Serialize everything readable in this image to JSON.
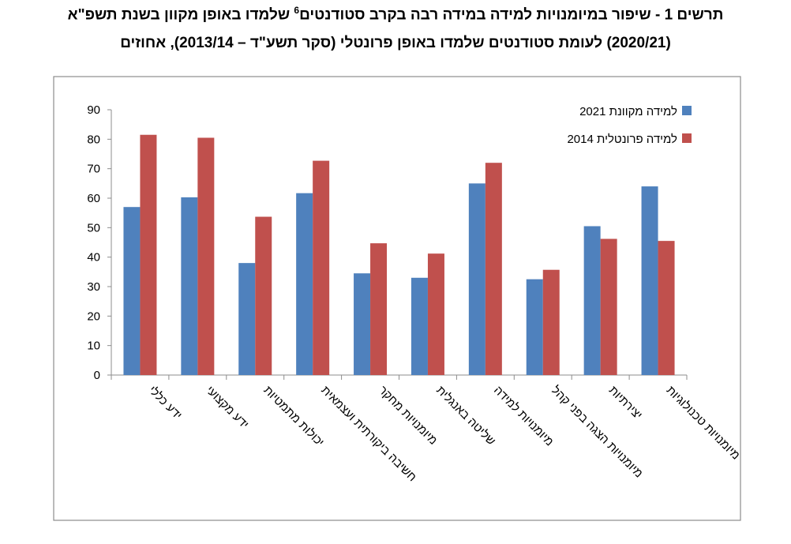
{
  "figure": {
    "title_line1_a": "תרשים 1 - שיפור במיומנויות למידה במידה רבה בקרב סטודנטים",
    "footnote_mark": "6",
    "title_line1_b": " שלמדו באופן מקוון בשנת תשפ\"א",
    "title_line2": "(2020/21) לעומת סטודנטים שלמדו באופן פרונטלי (סקר תשע\"ד – 2013/14), אחוזים"
  },
  "chart_data": {
    "type": "bar",
    "categories": [
      "ידע כללי",
      "ידע מקצועי",
      "יכולות מתמטיות",
      "חשיבה ביקורתית ועצמאית",
      "מיומנויות מחקר",
      "שליטה באנגלית",
      "מיומנויות למידה",
      "מיומנויות הצגה בפני קהל",
      "יצירתיות",
      "מיומנויות טכנולוגיות"
    ],
    "series": [
      {
        "name": "למידה מקוונת 2021",
        "color": "#4f81bd",
        "values": [
          57,
          60.3,
          38,
          61.7,
          34.5,
          33,
          65,
          32.5,
          50.5,
          64
        ]
      },
      {
        "name": "למידה פרונטלית 2014",
        "color": "#c0504d",
        "values": [
          81.5,
          80.5,
          53.7,
          72.7,
          44.7,
          41.2,
          72,
          35.7,
          46.2,
          45.5
        ]
      }
    ],
    "yticks": [
      0,
      10,
      20,
      30,
      40,
      50,
      60,
      70,
      80,
      90
    ],
    "ylim": [
      0,
      90
    ],
    "grid": false,
    "legend_position": "top-right"
  }
}
